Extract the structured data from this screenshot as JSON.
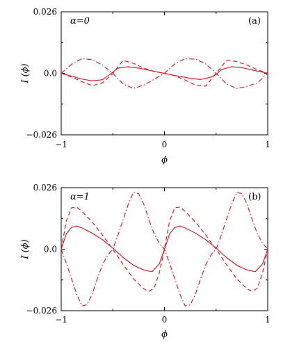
{
  "chart_data": [
    {
      "type": "line",
      "panel_label": "(a)",
      "parameter_label": "α=0",
      "xlabel": "ϕ",
      "ylabel": "I (ϕ)",
      "xlim": [
        -1,
        1
      ],
      "ylim": [
        -0.026,
        0.026
      ],
      "x_ticks": [
        -1,
        0,
        1
      ],
      "x_tick_labels": [
        "−1",
        "0",
        "1"
      ],
      "y_ticks": [
        -0.026,
        0.0,
        0.026
      ],
      "y_tick_labels": [
        "−0.026",
        "0.0",
        "0.026"
      ],
      "grid": false,
      "series": [
        {
          "style": "solid",
          "x": [
            -1,
            -0.9,
            -0.8,
            -0.7,
            -0.6,
            -0.5,
            -0.45,
            -0.35,
            -0.25,
            -0.15,
            -0.05,
            0,
            0.05,
            0.15,
            0.25,
            0.35,
            0.45,
            0.5,
            0.55,
            0.65,
            0.75,
            0.85,
            0.95,
            1
          ],
          "y": [
            0.0,
            -0.0012,
            -0.0024,
            -0.0032,
            -0.0027,
            0.0005,
            0.0022,
            0.0028,
            0.0022,
            0.0013,
            0.0004,
            0.0,
            -0.0005,
            -0.0013,
            -0.0021,
            -0.0026,
            -0.0016,
            -0.0005,
            0.0016,
            0.0028,
            0.0024,
            0.0014,
            0.0005,
            0.0
          ]
        },
        {
          "style": "dashed",
          "x": [
            -1,
            -0.9,
            -0.8,
            -0.7,
            -0.6,
            -0.52,
            -0.5,
            -0.4,
            -0.3,
            -0.2,
            -0.1,
            0,
            0.1,
            0.2,
            0.3,
            0.4,
            0.5,
            0.6,
            0.7,
            0.8,
            0.9,
            1
          ],
          "y": [
            0.0,
            -0.0015,
            -0.0035,
            -0.0052,
            -0.004,
            -0.001,
            0.0,
            0.0055,
            0.0042,
            0.0022,
            0.0008,
            0.0,
            -0.001,
            -0.0028,
            -0.005,
            -0.0054,
            0.0,
            0.0055,
            0.005,
            0.0035,
            0.0015,
            0.0
          ]
        },
        {
          "style": "dashdot",
          "x": [
            -1,
            -0.9,
            -0.8,
            -0.7,
            -0.6,
            -0.5,
            -0.4,
            -0.3,
            -0.2,
            -0.1,
            0,
            0.1,
            0.2,
            0.3,
            0.4,
            0.5,
            0.6,
            0.7,
            0.8,
            0.9,
            1
          ],
          "y": [
            0.0,
            0.0038,
            0.0062,
            0.0058,
            0.0035,
            0.0,
            -0.0045,
            -0.0064,
            -0.005,
            -0.0025,
            0.0,
            0.004,
            0.0062,
            0.006,
            0.004,
            0.0,
            -0.0045,
            -0.0064,
            -0.0055,
            -0.004,
            0.0
          ]
        }
      ]
    },
    {
      "type": "line",
      "panel_label": "(b)",
      "parameter_label": "α=1",
      "xlabel": "ϕ",
      "ylabel": "I (ϕ)",
      "xlim": [
        -1,
        1
      ],
      "ylim": [
        -0.026,
        0.026
      ],
      "x_ticks": [
        -1,
        0,
        1
      ],
      "x_tick_labels": [
        "−1",
        "0",
        "1"
      ],
      "y_ticks": [
        -0.026,
        0.0,
        0.026
      ],
      "y_tick_labels": [
        "−0.026",
        "0.0",
        "0.026"
      ],
      "grid": false,
      "series": [
        {
          "style": "solid",
          "x": [
            -1,
            -0.95,
            -0.9,
            -0.85,
            -0.8,
            -0.7,
            -0.6,
            -0.5,
            -0.4,
            -0.3,
            -0.2,
            -0.12,
            -0.05,
            0,
            0.05,
            0.1,
            0.15,
            0.2,
            0.3,
            0.4,
            0.5,
            0.6,
            0.7,
            0.8,
            0.88,
            0.95,
            1
          ],
          "y": [
            0.0,
            0.0065,
            0.0092,
            0.0098,
            0.009,
            0.0068,
            0.004,
            0.0005,
            -0.0035,
            -0.0068,
            -0.0088,
            -0.0095,
            -0.0062,
            0.0,
            0.0065,
            0.0092,
            0.0098,
            0.009,
            0.0068,
            0.004,
            0.0005,
            -0.0035,
            -0.0068,
            -0.0088,
            -0.0095,
            -0.0062,
            0.0
          ]
        },
        {
          "style": "dashed",
          "x": [
            -1,
            -0.95,
            -0.9,
            -0.85,
            -0.8,
            -0.7,
            -0.6,
            -0.5,
            -0.4,
            -0.3,
            -0.2,
            -0.15,
            -0.1,
            -0.05,
            0,
            0.05,
            0.1,
            0.15,
            0.2,
            0.3,
            0.4,
            0.5,
            0.6,
            0.7,
            0.8,
            0.85,
            0.9,
            0.95,
            1
          ],
          "y": [
            0.0,
            0.012,
            0.0175,
            0.0178,
            0.016,
            0.0115,
            0.006,
            0.0,
            -0.0065,
            -0.0125,
            -0.0168,
            -0.0178,
            -0.0165,
            -0.01,
            0.0,
            0.012,
            0.0175,
            0.0178,
            0.016,
            0.0115,
            0.006,
            0.0,
            -0.0065,
            -0.0125,
            -0.0168,
            -0.0178,
            -0.0165,
            -0.01,
            0.0
          ]
        },
        {
          "style": "dashdot",
          "x": [
            -1,
            -0.95,
            -0.9,
            -0.85,
            -0.8,
            -0.75,
            -0.7,
            -0.65,
            -0.6,
            -0.55,
            -0.5,
            -0.45,
            -0.4,
            -0.35,
            -0.3,
            -0.25,
            -0.2,
            -0.15,
            -0.1,
            -0.05,
            0,
            0.05,
            0.1,
            0.15,
            0.2,
            0.25,
            0.3,
            0.35,
            0.4,
            0.45,
            0.5,
            0.55,
            0.6,
            0.65,
            0.7,
            0.75,
            0.8,
            0.85,
            0.9,
            0.95,
            1
          ],
          "y": [
            0.0,
            -0.006,
            -0.0125,
            -0.019,
            -0.024,
            -0.0235,
            -0.019,
            -0.0125,
            -0.0065,
            -0.0025,
            0.0,
            0.006,
            0.0125,
            0.019,
            0.024,
            0.0235,
            0.019,
            0.0125,
            0.0065,
            0.0025,
            0.0,
            -0.006,
            -0.0125,
            -0.019,
            -0.024,
            -0.0235,
            -0.019,
            -0.0125,
            -0.0065,
            -0.0025,
            0.0,
            0.006,
            0.0125,
            0.019,
            0.024,
            0.0235,
            0.019,
            0.0125,
            0.0065,
            0.0025,
            0.0
          ]
        }
      ]
    }
  ],
  "colors": {
    "curve": "#d0202a",
    "axis": "#000000"
  }
}
